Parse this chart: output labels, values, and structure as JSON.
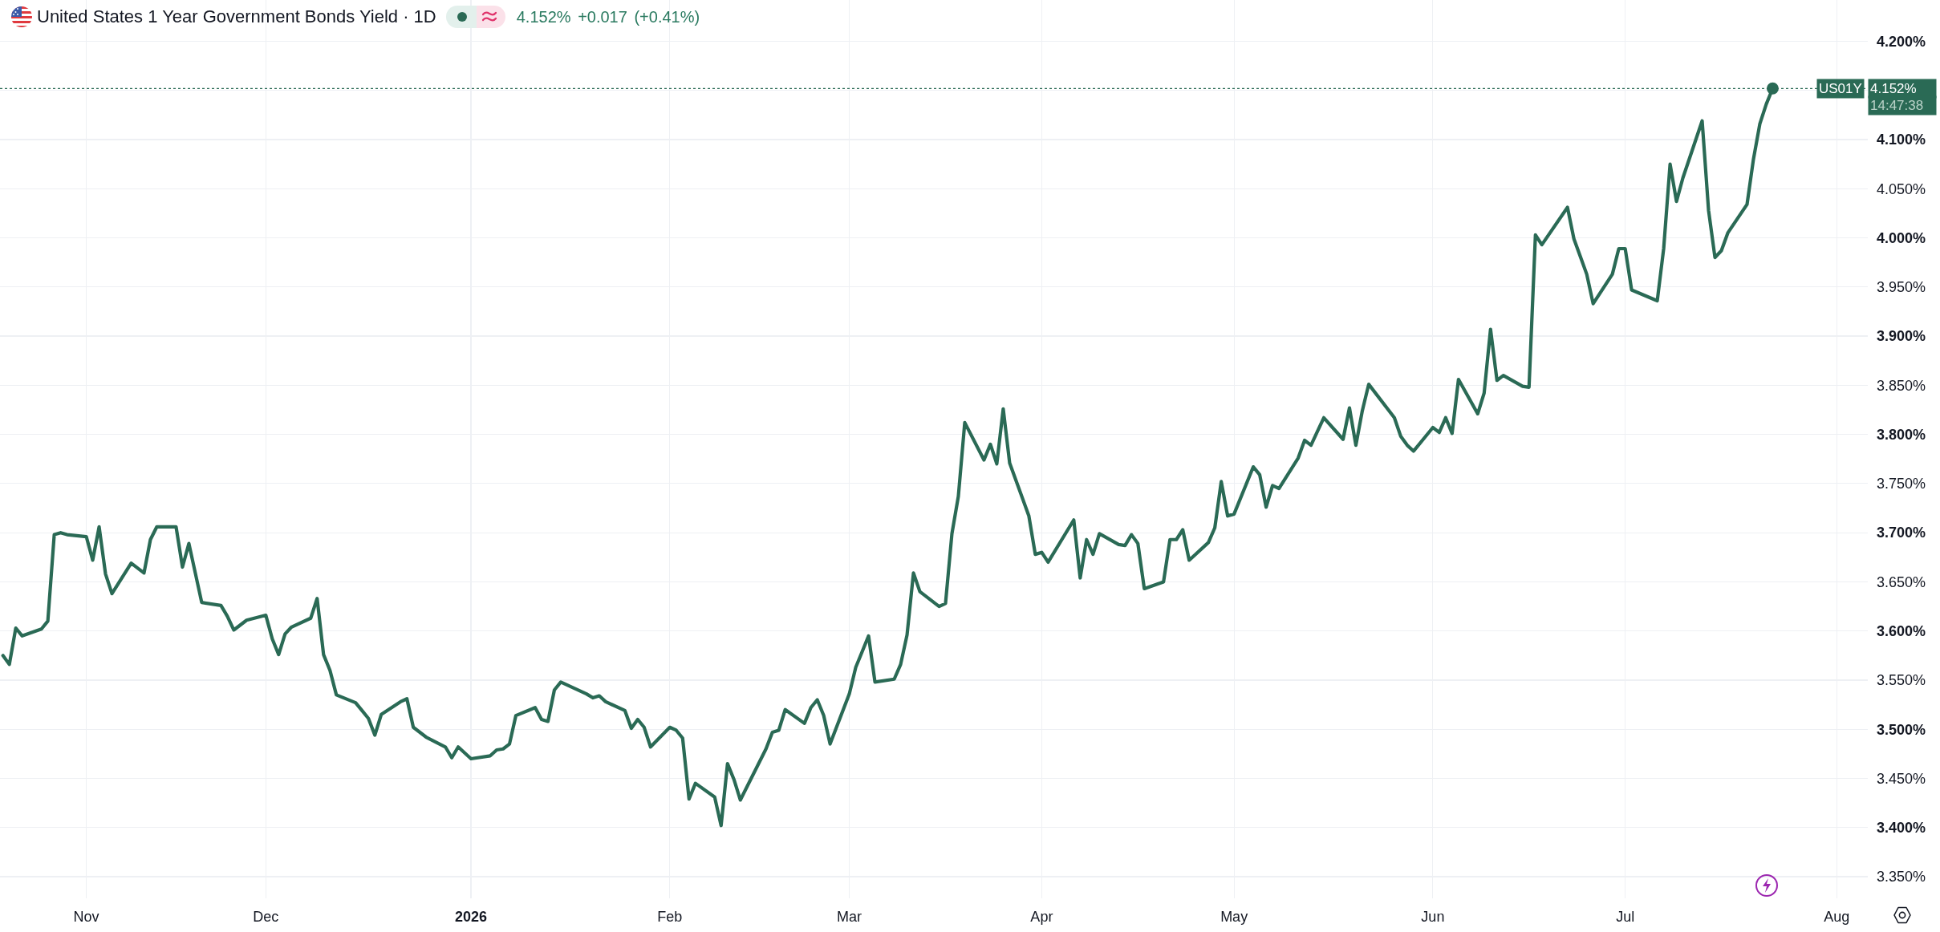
{
  "chart_data": {
    "type": "line",
    "title": "United States 1 Year Government Bonds Yield · 1D",
    "subtitle": "4.152% +0.017 (+0.41%)",
    "x": [
      "2025-10-21",
      "2025-10-22",
      "2025-10-23",
      "2025-10-24",
      "2025-10-27",
      "2025-10-28",
      "2025-10-29",
      "2025-10-30",
      "2025-10-31",
      "2025-11-03",
      "2025-11-04",
      "2025-11-05",
      "2025-11-06",
      "2025-11-07",
      "2025-11-10",
      "2025-11-12",
      "2025-11-13",
      "2025-11-14",
      "2025-11-17",
      "2025-11-18",
      "2025-11-19",
      "2025-11-20",
      "2025-11-21",
      "2025-11-24",
      "2025-11-25",
      "2025-11-26",
      "2025-11-28",
      "2025-12-01",
      "2025-12-02",
      "2025-12-03",
      "2025-12-04",
      "2025-12-05",
      "2025-12-08",
      "2025-12-09",
      "2025-12-10",
      "2025-12-11",
      "2025-12-12",
      "2025-12-15",
      "2025-12-16",
      "2025-12-17",
      "2025-12-18",
      "2025-12-19",
      "2025-12-22",
      "2025-12-23",
      "2025-12-24",
      "2025-12-26",
      "2025-12-29",
      "2025-12-30",
      "2025-12-31",
      "2026-01-02",
      "2026-01-05",
      "2026-01-06",
      "2026-01-07",
      "2026-01-08",
      "2026-01-09",
      "2026-01-12",
      "2026-01-13",
      "2026-01-14",
      "2026-01-15",
      "2026-01-16",
      "2026-01-20",
      "2026-01-21",
      "2026-01-22",
      "2026-01-23",
      "2026-01-26",
      "2026-01-27",
      "2026-01-28",
      "2026-01-29",
      "2026-01-30",
      "2026-02-02",
      "2026-02-03",
      "2026-02-04",
      "2026-02-05",
      "2026-02-06",
      "2026-02-09",
      "2026-02-10",
      "2026-02-11",
      "2026-02-12",
      "2026-02-13",
      "2026-02-17",
      "2026-02-18",
      "2026-02-19",
      "2026-02-20",
      "2026-02-23",
      "2026-02-24",
      "2026-02-25",
      "2026-02-26",
      "2026-02-27",
      "2026-03-02",
      "2026-03-03",
      "2026-03-04",
      "2026-03-05",
      "2026-03-06",
      "2026-03-09",
      "2026-03-10",
      "2026-03-11",
      "2026-03-12",
      "2026-03-13",
      "2026-03-16",
      "2026-03-17",
      "2026-03-18",
      "2026-03-19",
      "2026-03-20",
      "2026-03-23",
      "2026-03-24",
      "2026-03-25",
      "2026-03-26",
      "2026-03-27",
      "2026-03-30",
      "2026-03-31",
      "2026-04-01",
      "2026-04-02",
      "2026-04-06",
      "2026-04-07",
      "2026-04-08",
      "2026-04-09",
      "2026-04-10",
      "2026-04-13",
      "2026-04-14",
      "2026-04-15",
      "2026-04-16",
      "2026-04-17",
      "2026-04-20",
      "2026-04-21",
      "2026-04-22",
      "2026-04-23",
      "2026-04-24",
      "2026-04-27",
      "2026-04-28",
      "2026-04-29",
      "2026-04-30",
      "2026-05-01",
      "2026-05-04",
      "2026-05-05",
      "2026-05-06",
      "2026-05-07",
      "2026-05-08",
      "2026-05-11",
      "2026-05-12",
      "2026-05-13",
      "2026-05-14",
      "2026-05-15",
      "2026-05-18",
      "2026-05-19",
      "2026-05-20",
      "2026-05-21",
      "2026-05-22",
      "2026-05-26",
      "2026-05-27",
      "2026-05-28",
      "2026-05-29",
      "2026-06-01",
      "2026-06-02",
      "2026-06-03",
      "2026-06-04",
      "2026-06-05",
      "2026-06-08",
      "2026-06-09",
      "2026-06-10",
      "2026-06-11",
      "2026-06-12",
      "2026-06-15",
      "2026-06-16",
      "2026-06-17",
      "2026-06-18",
      "2026-06-22",
      "2026-06-23",
      "2026-06-24",
      "2026-06-25",
      "2026-06-26",
      "2026-06-29",
      "2026-06-30",
      "2026-07-01",
      "2026-07-02",
      "2026-07-06",
      "2026-07-07",
      "2026-07-08",
      "2026-07-09",
      "2026-07-10",
      "2026-07-13",
      "2026-07-14",
      "2026-07-15",
      "2026-07-16",
      "2026-07-17",
      "2026-07-20",
      "2026-07-21",
      "2026-07-22",
      "2026-07-23",
      "2026-07-24"
    ],
    "series": [
      {
        "name": "US01Y",
        "color": "#2a6a55",
        "values": [
          3.575,
          3.566,
          3.603,
          3.595,
          3.602,
          3.61,
          3.698,
          3.7,
          3.698,
          3.696,
          3.672,
          3.706,
          3.658,
          3.638,
          3.669,
          3.659,
          3.693,
          3.706,
          3.706,
          3.665,
          3.689,
          3.659,
          3.629,
          3.626,
          3.615,
          3.601,
          3.611,
          3.616,
          3.592,
          3.576,
          3.597,
          3.604,
          3.613,
          3.633,
          3.576,
          3.56,
          3.535,
          3.527,
          3.519,
          3.511,
          3.494,
          3.515,
          3.528,
          3.531,
          3.502,
          3.492,
          3.482,
          3.471,
          3.482,
          3.47,
          3.473,
          3.479,
          3.48,
          3.485,
          3.514,
          3.522,
          3.51,
          3.508,
          3.54,
          3.548,
          3.536,
          3.532,
          3.534,
          3.528,
          3.519,
          3.501,
          3.51,
          3.502,
          3.482,
          3.502,
          3.499,
          3.491,
          3.429,
          3.445,
          3.431,
          3.402,
          3.465,
          3.449,
          3.428,
          3.48,
          3.497,
          3.499,
          3.52,
          3.506,
          3.522,
          3.53,
          3.514,
          3.485,
          3.536,
          3.563,
          3.579,
          3.595,
          3.548,
          3.551,
          3.566,
          3.596,
          3.659,
          3.64,
          3.625,
          3.628,
          3.699,
          3.737,
          3.812,
          3.774,
          3.79,
          3.77,
          3.826,
          3.771,
          3.717,
          3.678,
          3.68,
          3.67,
          3.713,
          3.654,
          3.693,
          3.678,
          3.699,
          3.688,
          3.687,
          3.698,
          3.689,
          3.643,
          3.65,
          3.693,
          3.693,
          3.703,
          3.672,
          3.69,
          3.705,
          3.752,
          3.717,
          3.719,
          3.767,
          3.759,
          3.726,
          3.748,
          3.745,
          3.776,
          3.794,
          3.789,
          3.803,
          3.817,
          3.795,
          3.827,
          3.789,
          3.824,
          3.851,
          3.817,
          3.798,
          3.789,
          3.783,
          3.807,
          3.802,
          3.817,
          3.801,
          3.856,
          3.821,
          3.842,
          3.907,
          3.855,
          3.86,
          3.849,
          3.848,
          4.003,
          3.993,
          4.031,
          3.999,
          3.981,
          3.963,
          3.933,
          3.963,
          3.989,
          3.989,
          3.947,
          3.936,
          3.989,
          4.075,
          4.037,
          4.061,
          4.119,
          4.028,
          3.98,
          3.987,
          4.005,
          4.034,
          4.08,
          4.116,
          4.136,
          4.152
        ]
      }
    ],
    "xlim": [
      "2025-10-20T13:00",
      "2026-08-07T20:00"
    ],
    "xticks": [
      {
        "value": "2025-11-03",
        "label": "Nov"
      },
      {
        "value": "2025-12-01",
        "label": "Dec"
      },
      {
        "value": "2026-01-02",
        "label": "2026"
      },
      {
        "value": "2026-02-02",
        "label": "Feb"
      },
      {
        "value": "2026-03-02",
        "label": "Mar"
      },
      {
        "value": "2026-04-01",
        "label": "Apr"
      },
      {
        "value": "2026-05-01",
        "label": "May"
      },
      {
        "value": "2026-06-01",
        "label": "Jun"
      },
      {
        "value": "2026-07-01",
        "label": "Jul"
      },
      {
        "value": "2026-08-03",
        "label": "Aug"
      }
    ],
    "ylim": [
      3.328,
      4.242
    ],
    "yticks": [
      {
        "value": 3.35,
        "label": "3.350%"
      },
      {
        "value": 3.4,
        "label": "3.400%"
      },
      {
        "value": 3.45,
        "label": "3.450%"
      },
      {
        "value": 3.5,
        "label": "3.500%"
      },
      {
        "value": 3.55,
        "label": "3.550%"
      },
      {
        "value": 3.6,
        "label": "3.600%"
      },
      {
        "value": 3.65,
        "label": "3.650%"
      },
      {
        "value": 3.7,
        "label": "3.700%"
      },
      {
        "value": 3.75,
        "label": "3.750%"
      },
      {
        "value": 3.8,
        "label": "3.800%"
      },
      {
        "value": 3.85,
        "label": "3.850%"
      },
      {
        "value": 3.9,
        "label": "3.900%"
      },
      {
        "value": 3.95,
        "label": "3.950%"
      },
      {
        "value": 4.0,
        "label": "4.000%"
      },
      {
        "value": 4.05,
        "label": "4.050%"
      },
      {
        "value": 4.1,
        "label": "4.100%"
      },
      {
        "value": 4.15,
        "label": null
      },
      {
        "value": 4.2,
        "label": "4.200%"
      }
    ],
    "ref_lines": [
      {
        "axis": "y",
        "value": 4.152,
        "label": "4.152%",
        "color": "#2a6a55",
        "line_style": "dotted"
      }
    ],
    "annotations": [
      "14:47:38"
    ],
    "grid": true,
    "legend": false
  }
}
